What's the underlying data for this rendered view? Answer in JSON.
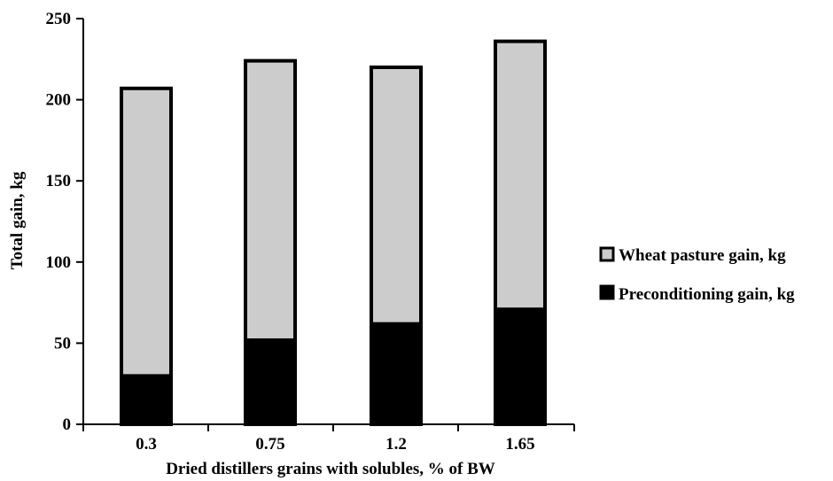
{
  "chart_data": {
    "type": "bar",
    "stacked": true,
    "categories": [
      "0.3",
      "0.75",
      "1.2",
      "1.65"
    ],
    "series": [
      {
        "name": "Preconditioning gain, kg",
        "values": [
          31,
          53,
          63,
          72
        ],
        "color": "#000000"
      },
      {
        "name": "Wheat pasture gain, kg",
        "values": [
          176,
          171,
          157,
          164
        ],
        "color": "#cccccc"
      }
    ],
    "totals": [
      207,
      224,
      220,
      236
    ],
    "xlabel": "Dried distillers grains with solubles, % of BW",
    "ylabel": "Total gain, kg",
    "ylim": [
      0,
      250
    ],
    "yticks": [
      0,
      50,
      100,
      150,
      200,
      250
    ],
    "grid": false,
    "legend_position": "right",
    "legend_order": [
      "Wheat pasture gain, kg",
      "Preconditioning gain, kg"
    ],
    "bar_outline_color": "#000000"
  }
}
